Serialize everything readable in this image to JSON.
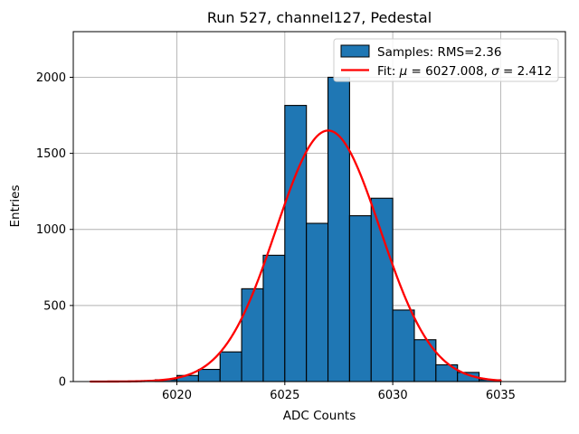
{
  "window": {
    "background": "#ffffff"
  },
  "chart_data": {
    "type": "bar",
    "subtype": "histogram-with-gaussian-fit",
    "title": "Run 527, channel127, Pedestal",
    "xlabel": "ADC Counts",
    "ylabel": "Entries",
    "xlim": [
      6015.2,
      6038.0
    ],
    "ylim": [
      0,
      2300
    ],
    "xticks": [
      6020,
      6025,
      6030,
      6035
    ],
    "yticks": [
      0,
      500,
      1000,
      1500,
      2000
    ],
    "grid": true,
    "grid_color": "#b0b0b0",
    "bar_color": "#1f77b4",
    "bar_edge_color": "#000000",
    "fit_color": "#ff0000",
    "histogram": {
      "bin_start": 6019,
      "bin_width": 1,
      "bin_centers": [
        6019.5,
        6020.5,
        6021.5,
        6022.5,
        6023.5,
        6024.5,
        6025.5,
        6026.5,
        6027.5,
        6028.5,
        6029.5,
        6030.5,
        6031.5,
        6032.5,
        6033.5,
        6034.5
      ],
      "counts": [
        12,
        40,
        80,
        195,
        610,
        830,
        1815,
        1040,
        2000,
        1090,
        1205,
        470,
        275,
        110,
        60,
        12
      ]
    },
    "fit": {
      "mu": 6027.008,
      "sigma": 2.412,
      "amplitude": 1650,
      "x_range": [
        6016,
        6035
      ]
    },
    "legend": [
      {
        "swatch": "patch",
        "label": "Samples: RMS=2.36"
      },
      {
        "swatch": "line",
        "label": "Fit: μ = 6027.008, σ = 2.412"
      }
    ],
    "stats": {
      "rms": 2.36,
      "fit_mu": 6027.008,
      "fit_sigma": 2.412
    }
  }
}
